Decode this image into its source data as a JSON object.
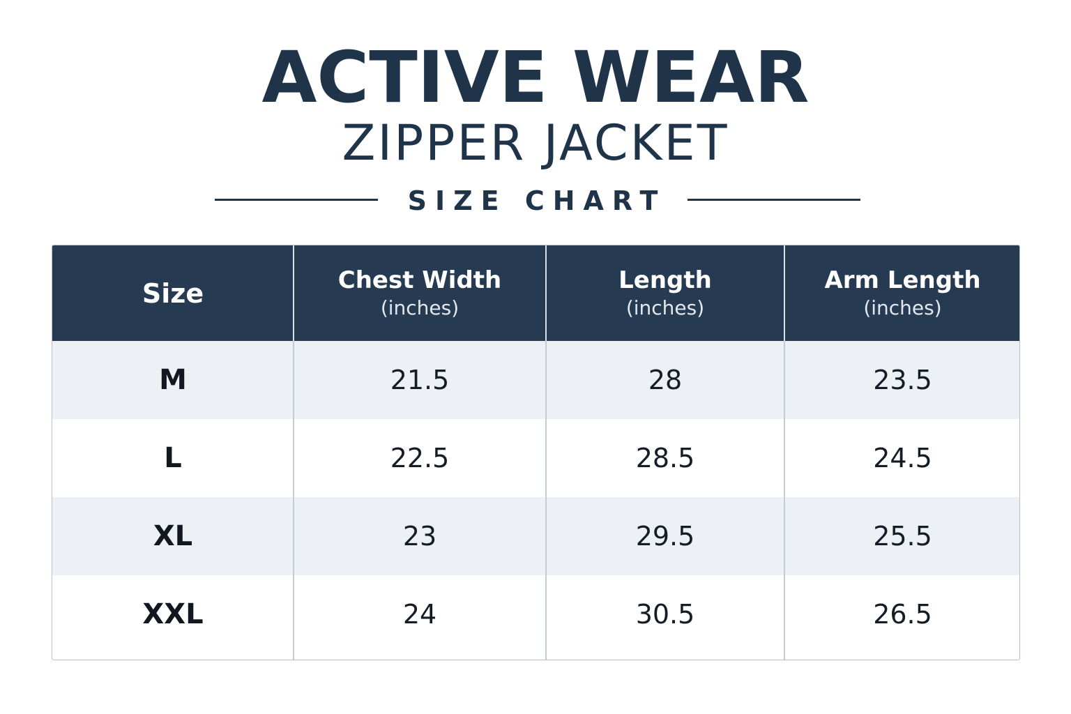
{
  "header": {
    "title": "ACTIVE WEAR",
    "subtitle": "ZIPPER JACKET",
    "section_label": "SIZE CHART"
  },
  "colors": {
    "navy": "#1f3349",
    "header_bg": "#263a51",
    "row_alt": "#edf1f5",
    "border": "#b5bfcc"
  },
  "table": {
    "columns": [
      {
        "label": "Size",
        "unit": ""
      },
      {
        "label": "Chest Width",
        "unit": "(inches)"
      },
      {
        "label": "Length",
        "unit": "(inches)"
      },
      {
        "label": "Arm Length",
        "unit": "(inches)"
      }
    ],
    "rows": [
      {
        "size": "M",
        "chest": "21.5",
        "length": "28",
        "arm": "23.5"
      },
      {
        "size": "L",
        "chest": "22.5",
        "length": "28.5",
        "arm": "24.5"
      },
      {
        "size": "XL",
        "chest": "23",
        "length": "29.5",
        "arm": "25.5"
      },
      {
        "size": "XXL",
        "chest": "24",
        "length": "30.5",
        "arm": "26.5"
      }
    ]
  }
}
